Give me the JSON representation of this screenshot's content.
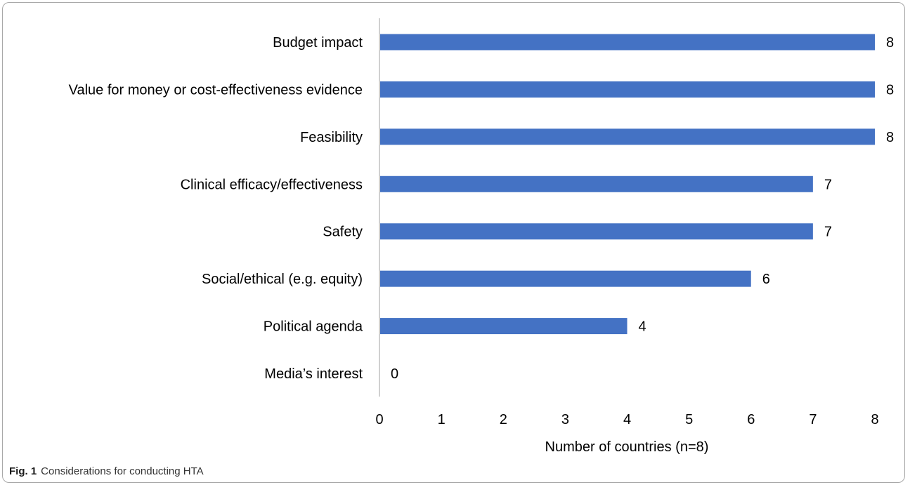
{
  "chart_data": {
    "type": "bar",
    "orientation": "horizontal",
    "categories": [
      "Budget impact",
      "Value for money or cost-effectiveness evidence",
      "Feasibility",
      "Clinical efficacy/effectiveness",
      "Safety",
      "Social/ethical (e.g. equity)",
      "Political agenda",
      "Media’s interest"
    ],
    "values": [
      8,
      8,
      8,
      7,
      7,
      6,
      4,
      0
    ],
    "data_labels": [
      "8",
      "8",
      "8",
      "7",
      "7",
      "6",
      "4",
      "0"
    ],
    "xlabel": "Number of countries (n=8)",
    "ylabel": "",
    "xlim": [
      0,
      8
    ],
    "xticks": [
      "0",
      "1",
      "2",
      "3",
      "4",
      "5",
      "6",
      "7",
      "8"
    ],
    "grid": false,
    "legend": "none",
    "bar_color": "#4472c4"
  },
  "caption": {
    "label": "Fig. 1",
    "text": "Considerations for conducting HTA"
  }
}
